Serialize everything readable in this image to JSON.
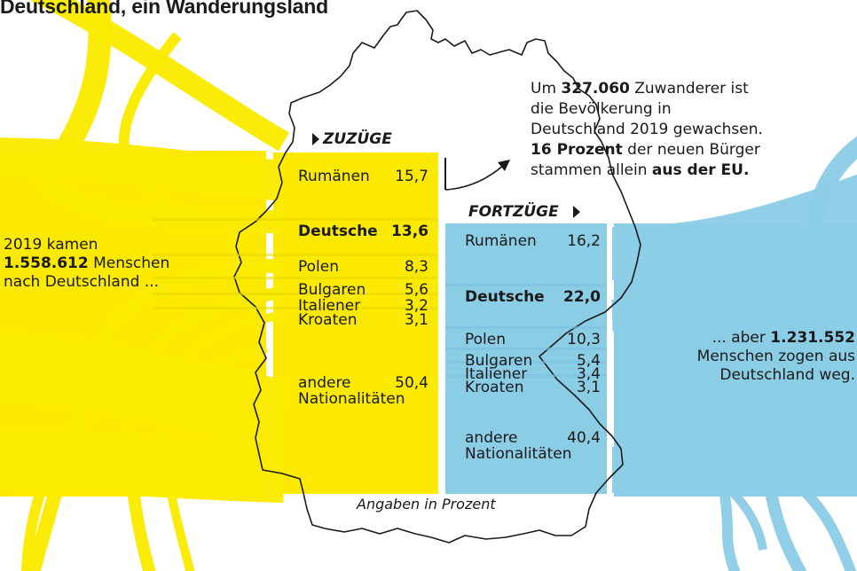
{
  "title": "Deutschland, ein Wanderungsland",
  "colors": {
    "zuzug": "#fbea00",
    "fortzug": "#8ccde6",
    "text": "#1a1a1a",
    "outline": "#1a1a1a"
  },
  "left_text": {
    "line1": "2019 kamen",
    "number": "1.558.612",
    "line2_rest": " Menschen",
    "line3": "nach Deutschland ..."
  },
  "right_text": {
    "line1_prefix": "... aber ",
    "number": "1.231.552",
    "line2": "Menschen zogen aus",
    "line3": "Deutschland weg."
  },
  "top_text": {
    "line1_prefix": "Um ",
    "line1_number": "327.060",
    "line1_rest": " Zuwanderer ist",
    "line2": "die Bevölkerung in",
    "line3": "Deutschland 2019 gewachsen.",
    "line4_bold": "16 Prozent",
    "line4_rest": " der neuen Bürger",
    "line5_prefix": "stammen allein ",
    "line5_bold": "aus der EU."
  },
  "unit_note": "Angaben in Prozent",
  "chart_data": [
    {
      "type": "table",
      "title": "ZUZÜGE",
      "unit": "Prozent",
      "categories": [
        "Rumänen",
        "Deutsche",
        "Polen",
        "Bulgaren",
        "Italiener",
        "Kroaten",
        "andere Nationalitäten"
      ],
      "labels": [
        [
          "Rumänen"
        ],
        [
          "Deutsche"
        ],
        [
          "Polen"
        ],
        [
          "Bulgaren"
        ],
        [
          "Italiener"
        ],
        [
          "Kroaten"
        ],
        [
          "andere",
          "Nationalitäten"
        ]
      ],
      "value_labels": [
        "15,7",
        "13,6",
        "8,3",
        "5,6",
        "3,2",
        "3,1",
        "50,4"
      ],
      "values": [
        15.7,
        13.6,
        8.3,
        5.6,
        3.2,
        3.1,
        50.4
      ],
      "highlight": "Deutsche",
      "total": 1558612
    },
    {
      "type": "table",
      "title": "FORTZÜGE",
      "unit": "Prozent",
      "categories": [
        "Rumänen",
        "Deutsche",
        "Polen",
        "Bulgaren",
        "Italiener",
        "Kroaten",
        "andere Nationalitäten"
      ],
      "labels": [
        [
          "Rumänen"
        ],
        [
          "Deutsche"
        ],
        [
          "Polen"
        ],
        [
          "Bulgaren"
        ],
        [
          "Italiener"
        ],
        [
          "Kroaten"
        ],
        [
          "andere",
          "Nationalitäten"
        ]
      ],
      "value_labels": [
        "16,2",
        "22,0",
        "10,3",
        "5,4",
        "3,4",
        "3,1",
        "40,4"
      ],
      "values": [
        16.2,
        22.0,
        10.3,
        5.4,
        3.4,
        3.1,
        40.4
      ],
      "highlight": "Deutsche",
      "total": 1231552
    }
  ]
}
